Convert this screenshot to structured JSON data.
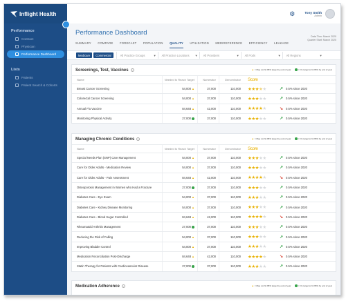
{
  "app": {
    "name": "Inflight Health"
  },
  "sidebar": {
    "sections": [
      {
        "title": "Performance",
        "items": [
          {
            "label": "Contract",
            "icon": "document-icon",
            "active": false
          },
          {
            "label": "Physician",
            "icon": "person-icon",
            "active": false
          },
          {
            "label": "Performance Dashboard",
            "icon": "group-icon",
            "active": true
          }
        ]
      },
      {
        "title": "Lists",
        "items": [
          {
            "label": "Patients",
            "icon": "person-icon",
            "active": false
          },
          {
            "label": "Patient Search & Cohorts",
            "icon": "search-icon",
            "active": false
          }
        ]
      }
    ]
  },
  "header": {
    "user_name": "Tony Smith",
    "user_role": "Admin"
  },
  "page": {
    "title": "Performance Dashboard",
    "data_through": "Data Thru: March 2020",
    "quarter_start": "Quarter Start: March 2020"
  },
  "tabs": [
    "SUMMARY",
    "COMPARE",
    "FORECAST",
    "POPULATION",
    "QUALITY",
    "UTILIZATION",
    "MEDIREFERENCE",
    "EFFICIENCY",
    "LEAKAGE"
  ],
  "active_tab": "QUALITY",
  "filters": {
    "pills": [
      "Medicare",
      "Commercial"
    ],
    "selects": [
      "All Practice Groups",
      "All Practice Locations",
      "All Providers",
      "All Pods",
      "All Regions"
    ]
  },
  "legend": {
    "warn": "= May not hit 95% target by end of year",
    "ok": "= On target to hit 95% by end of year"
  },
  "columns": [
    "Name",
    "Needed to Reach Target",
    "Numerator",
    "Denominator",
    "Score",
    ""
  ],
  "cards": [
    {
      "title": "Screenings, Test, Vaccines",
      "rows": [
        {
          "name": "Breast Cancer Screening",
          "needed": "54,000",
          "status": "warn",
          "num": "37,000",
          "den": "110,000",
          "stars": 3.5,
          "trend": "up",
          "change": "0.5% since 2020"
        },
        {
          "name": "Colorectal Cancer Screening",
          "needed": "54,000",
          "status": "warn",
          "num": "37,000",
          "den": "110,000",
          "stars": 3,
          "trend": "up",
          "change": "0.5% since 2020"
        },
        {
          "name": "Annual Flu Vaccine",
          "needed": "84,648",
          "status": "warn",
          "num": "42,000",
          "den": "110,000",
          "stars": 4,
          "trend": "down",
          "change": "0.5% since 2020"
        },
        {
          "name": "Monitoring Physical Activity",
          "needed": "27,000",
          "status": "ok",
          "num": "37,000",
          "den": "110,000",
          "stars": 3,
          "trend": "up",
          "change": "0.5% since 2020"
        }
      ]
    },
    {
      "title": "Managing Chronic Conditions",
      "rows": [
        {
          "name": "Special Needs Plan (SNP) Care Management",
          "needed": "54,000",
          "status": "warn",
          "num": "37,000",
          "den": "110,000",
          "stars": 3,
          "trend": "up",
          "change": "0.5% since 2020"
        },
        {
          "name": "Care for Older Adults - Medication Review",
          "needed": "54,000",
          "status": "warn",
          "num": "37,000",
          "den": "110,000",
          "stars": 3,
          "trend": "up",
          "change": "0.5% since 2020"
        },
        {
          "name": "Care for Older Adults - Pain Assessment",
          "needed": "84,648",
          "status": "warn",
          "num": "42,000",
          "den": "110,000",
          "stars": 4,
          "trend": "down",
          "change": "0.5% since 2020"
        },
        {
          "name": "Osteoporosis Management in Women who Had a Fracture",
          "needed": "27,000",
          "status": "ok",
          "num": "37,000",
          "den": "110,000",
          "stars": 3,
          "trend": "up",
          "change": "0.5% since 2020"
        },
        {
          "name": "Diabetes Care - Eye Exam",
          "needed": "54,000",
          "status": "warn",
          "num": "37,000",
          "den": "110,000",
          "stars": 3,
          "trend": "up",
          "change": "0.5% since 2020"
        },
        {
          "name": "Diabetes Care - Kidney Disease Monitoring",
          "needed": "54,000",
          "status": "warn",
          "num": "37,000",
          "den": "110,000",
          "stars": 3,
          "trend": "up",
          "change": "0.5% since 2020"
        },
        {
          "name": "Diabetes Care - Blood Sugar Controlled",
          "needed": "84,648",
          "status": "warn",
          "num": "42,000",
          "den": "110,000",
          "stars": 4,
          "trend": "down",
          "change": "0.5% since 2020"
        },
        {
          "name": "Rheumatoid Arthritis Management",
          "needed": "27,000",
          "status": "ok",
          "num": "37,000",
          "den": "110,000",
          "stars": 3,
          "trend": "up",
          "change": "0.5% since 2020"
        },
        {
          "name": "Reducing the Risk of Falling",
          "needed": "54,000",
          "status": "warn",
          "num": "37,000",
          "den": "110,000",
          "stars": 3,
          "trend": "up",
          "change": "0.5% since 2020"
        },
        {
          "name": "Improving Bladder Control",
          "needed": "54,000",
          "status": "warn",
          "num": "37,000",
          "den": "110,000",
          "stars": 3,
          "trend": "up",
          "change": "0.5% since 2020"
        },
        {
          "name": "Medication Reconciliation Post-Discharge",
          "needed": "84,648",
          "status": "warn",
          "num": "42,000",
          "den": "110,000",
          "stars": 4,
          "trend": "down",
          "change": "0.5% since 2020"
        },
        {
          "name": "Statin Therapy for Patients with Cardiovascular Disease",
          "needed": "27,000",
          "status": "ok",
          "num": "37,000",
          "den": "110,000",
          "stars": 3,
          "trend": "up",
          "change": "0.5% since 2020"
        }
      ]
    },
    {
      "title": "Medication Adherence",
      "rows": []
    }
  ],
  "colors": {
    "sidebar": "#1d4d86",
    "accent": "#2f8fe0",
    "star": "#e8b100",
    "up": "#37a34a",
    "down": "#d94a3a"
  }
}
